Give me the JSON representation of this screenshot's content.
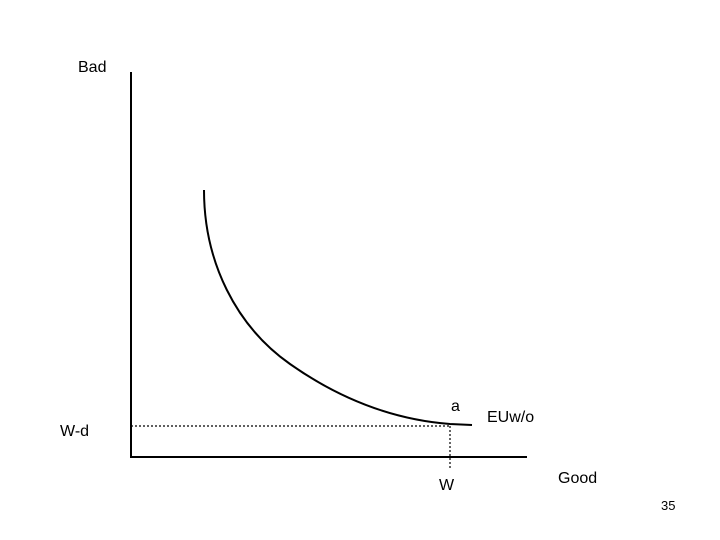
{
  "axes": {
    "y_label": "Bad",
    "x_label": "Good"
  },
  "labels": {
    "wealth_minus_d": "W-d",
    "wealth": "W",
    "point": "a",
    "curve": "EUw/o"
  },
  "slide_number": "35"
}
